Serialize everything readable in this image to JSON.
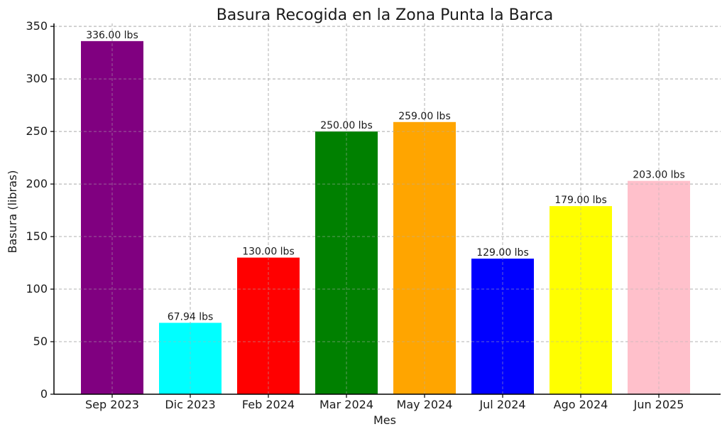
{
  "chart_data": {
    "type": "bar",
    "title": "Basura Recogida en la Zona Punta la Barca",
    "xlabel": "Mes",
    "ylabel": "Basura (libras)",
    "categories": [
      "Sep 2023",
      "Dic 2023",
      "Feb 2024",
      "Mar 2024",
      "May 2024",
      "Jul 2024",
      "Ago 2024",
      "Jun 2025"
    ],
    "values": [
      336.0,
      67.94,
      130.0,
      250.0,
      259.0,
      129.0,
      179.0,
      203.0
    ],
    "data_labels": [
      "336.00 lbs",
      "67.94 lbs",
      "130.00 lbs",
      "250.00 lbs",
      "259.00 lbs",
      "129.00 lbs",
      "179.00 lbs",
      "203.00 lbs"
    ],
    "colors": [
      "#800080",
      "#00ffff",
      "#ff0000",
      "#008000",
      "#ffa500",
      "#0000ff",
      "#ffff00",
      "#ffc0cb"
    ],
    "ylim": [
      0,
      352.8
    ],
    "yticks": [
      0,
      50,
      100,
      150,
      200,
      250,
      300,
      350
    ],
    "grid": true
  }
}
